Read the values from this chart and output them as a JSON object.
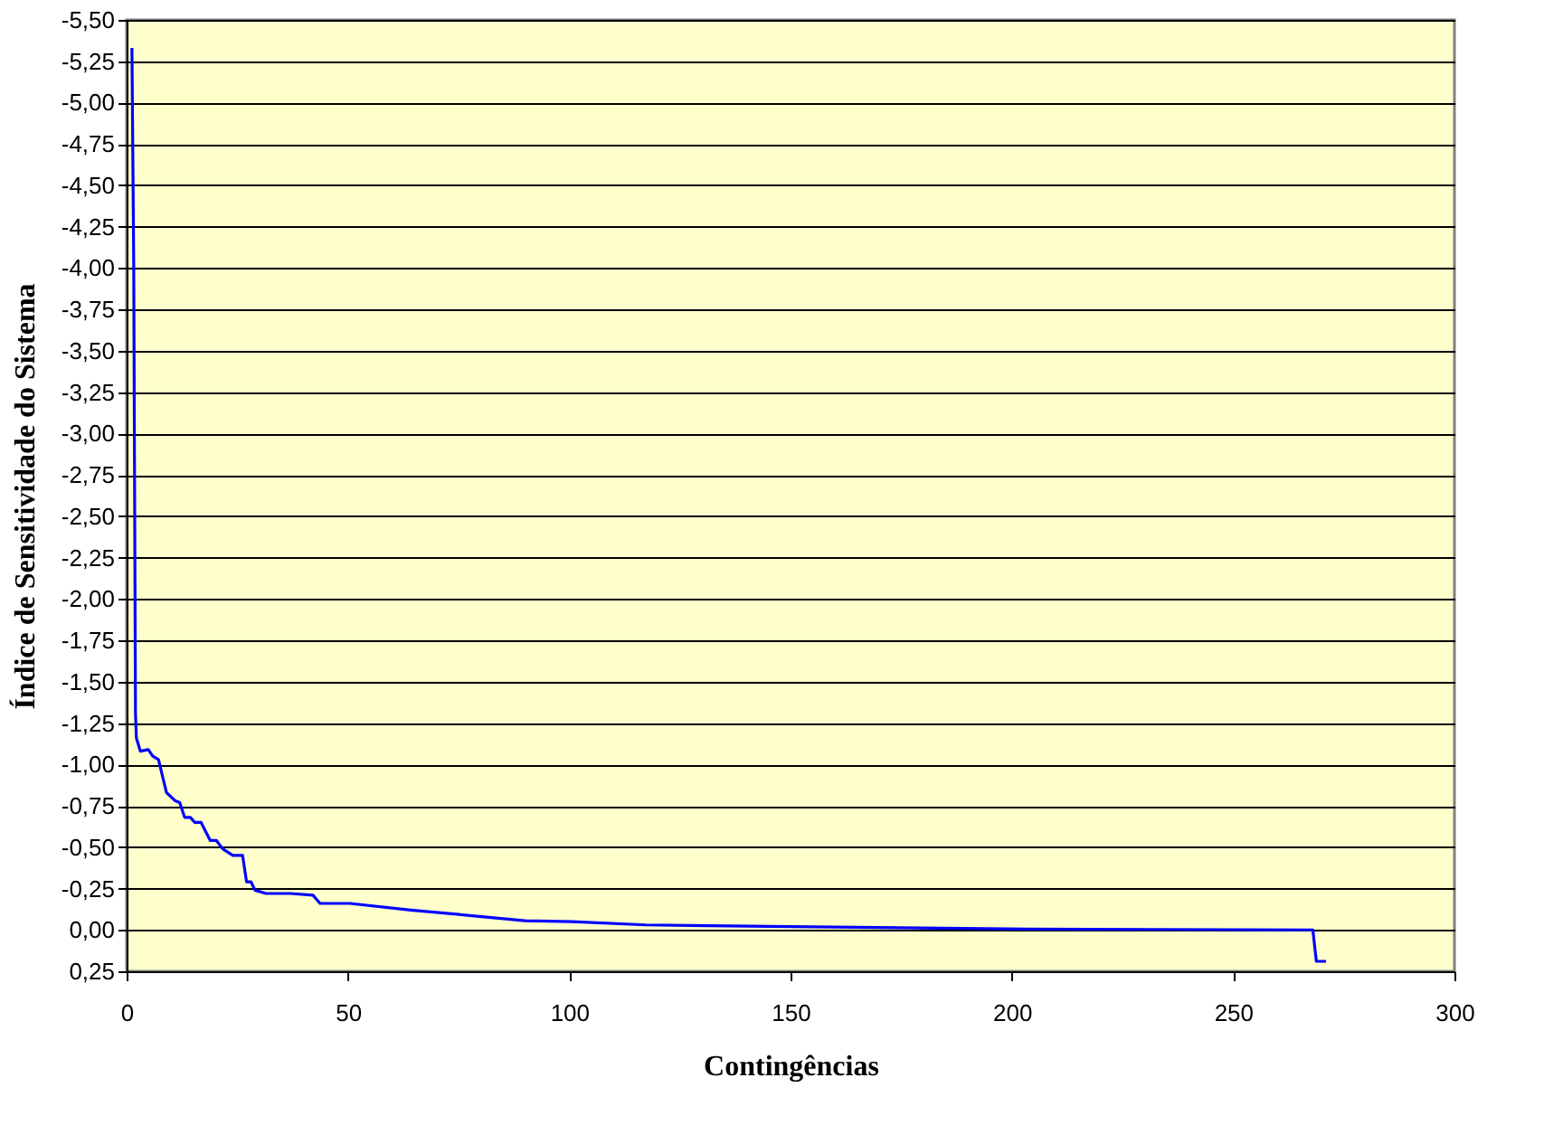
{
  "chart_data": {
    "type": "line",
    "xlabel": "Contingências",
    "ylabel": "Índice de Sensitividade do Sistema",
    "x": [
      1.2,
      1.6,
      2.0,
      2.2,
      3.1,
      4.9,
      5.9,
      7.2,
      9.0,
      9.4,
      11.0,
      12.0,
      13.1,
      14.4,
      15.4,
      16.8,
      18.9,
      20.3,
      21.7,
      24.0,
      26.2,
      27.1,
      28.1,
      29.0,
      31.5,
      37.0,
      42.1,
      43.7,
      50.5,
      64.2,
      76.4,
      90.0,
      100.6,
      117.3,
      150.0,
      204.0,
      268.0,
      268.8,
      271.0
    ],
    "series": [
      {
        "color": "#0000ff",
        "values": [
          -5.33,
          -4.04,
          -1.31,
          -1.16,
          -1.08,
          -1.09,
          -1.05,
          -1.03,
          -0.83,
          -0.82,
          -0.78,
          -0.77,
          -0.68,
          -0.68,
          -0.65,
          -0.65,
          -0.54,
          -0.54,
          -0.49,
          -0.45,
          -0.45,
          -0.29,
          -0.29,
          -0.24,
          -0.22,
          -0.22,
          -0.21,
          -0.16,
          -0.16,
          -0.12,
          -0.09,
          -0.055,
          -0.05,
          -0.03,
          -0.02,
          -0.005,
          0.0,
          0.19,
          0.19
        ]
      }
    ],
    "xlim": [
      0,
      300
    ],
    "xticks": [
      0,
      50,
      100,
      150,
      200,
      250,
      300
    ],
    "ylim": [
      0.25,
      -5.5
    ],
    "yticks": [
      {
        "value": 0.25,
        "label": "0,25"
      },
      {
        "value": 0,
        "label": "0,00"
      },
      {
        "value": -0.25,
        "label": "-0,25"
      },
      {
        "value": -0.5,
        "label": "-0,50"
      },
      {
        "value": -0.75,
        "label": "-0,75"
      },
      {
        "value": -1.0,
        "label": "-1,00"
      },
      {
        "value": -1.25,
        "label": "-1,25"
      },
      {
        "value": -1.5,
        "label": "-1,50"
      },
      {
        "value": -1.75,
        "label": "-1,75"
      },
      {
        "value": -2.0,
        "label": "-2,00"
      },
      {
        "value": -2.25,
        "label": "-2,25"
      },
      {
        "value": -2.5,
        "label": "-2,50"
      },
      {
        "value": -2.75,
        "label": "-2,75"
      },
      {
        "value": -3.0,
        "label": "-3,00"
      },
      {
        "value": -3.25,
        "label": "-3,25"
      },
      {
        "value": -3.5,
        "label": "-3,50"
      },
      {
        "value": -3.75,
        "label": "-3,75"
      },
      {
        "value": -4.0,
        "label": "-4,00"
      },
      {
        "value": -4.25,
        "label": "-4,25"
      },
      {
        "value": -4.5,
        "label": "-4,50"
      },
      {
        "value": -4.75,
        "label": "-4,75"
      },
      {
        "value": -5.0,
        "label": "-5,00"
      },
      {
        "value": -5.25,
        "label": "-5,25"
      },
      {
        "value": -5.5,
        "label": "-5,50"
      }
    ],
    "grid": "y",
    "marker": "none",
    "line_style": "solid",
    "legend": false
  }
}
